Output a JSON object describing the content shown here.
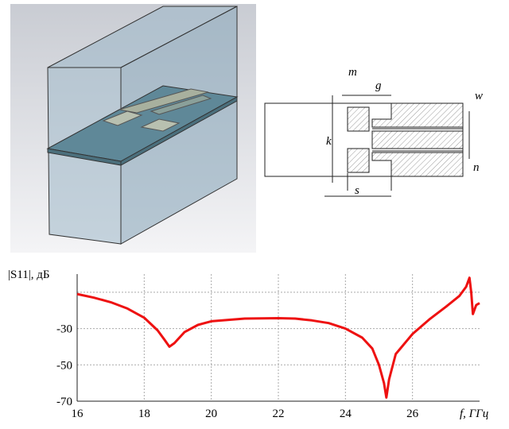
{
  "diagram": {
    "labels": {
      "m": "m",
      "g": "g",
      "w": "w",
      "k": "k",
      "n": "n",
      "s": "s"
    }
  },
  "chart_data": {
    "type": "line",
    "y_label": "|S11|, дБ",
    "x_label": "f, ГГц",
    "color": "#ee1111",
    "x": [
      16,
      16.5,
      17,
      17.5,
      18,
      18.4,
      18.6,
      18.75,
      18.9,
      19.2,
      19.6,
      20,
      21,
      22,
      22.5,
      23,
      23.5,
      24,
      24.5,
      24.8,
      25,
      25.15,
      25.22,
      25.3,
      25.5,
      26,
      26.5,
      27,
      27.4,
      27.6,
      27.7,
      27.75,
      27.8,
      27.9,
      28
    ],
    "values": [
      -11,
      -13,
      -15.5,
      -19,
      -24,
      -31,
      -36,
      -40,
      -38,
      -32,
      -28,
      -26,
      -24.5,
      -24.3,
      -24.5,
      -25.5,
      -27,
      -30,
      -35,
      -41,
      -50,
      -60,
      -68,
      -58,
      -44,
      -33,
      -25,
      -18,
      -12,
      -7,
      -2,
      -10,
      -22,
      -17,
      -16
    ],
    "xlim": [
      16,
      28
    ],
    "ylim": [
      -70,
      0
    ],
    "xticks": [
      16,
      18,
      20,
      22,
      24,
      26
    ],
    "yticks": [
      -70,
      -50,
      -30,
      {
        "value": -10,
        "label": null
      }
    ],
    "grid": true
  }
}
